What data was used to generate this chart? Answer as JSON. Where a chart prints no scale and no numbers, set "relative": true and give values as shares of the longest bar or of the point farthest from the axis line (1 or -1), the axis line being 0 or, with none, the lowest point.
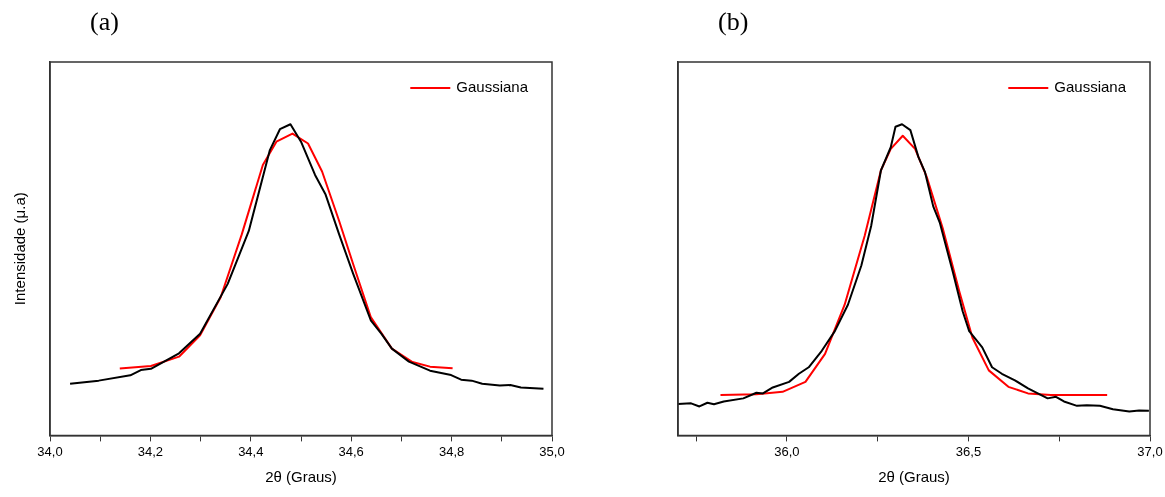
{
  "chart_data": [
    {
      "type": "line",
      "title": "(a)",
      "xlabel": "2θ (Graus)",
      "ylabel": "Intensidade (μ.a)",
      "relative": true,
      "legend": "top right",
      "marker": "none",
      "line_style": "solid",
      "tick_labels": "x",
      "xlim": [
        34.0,
        35.0
      ],
      "xticks": [
        {
          "value": 34.0,
          "label": "34,0"
        },
        {
          "value": 34.1,
          "label": null
        },
        {
          "value": 34.2,
          "label": "34,2"
        },
        {
          "value": 34.3,
          "label": null
        },
        {
          "value": 34.4,
          "label": "34,4"
        },
        {
          "value": 34.5,
          "label": null
        },
        {
          "value": 34.6,
          "label": "34,6"
        },
        {
          "value": 34.7,
          "label": null
        },
        {
          "value": 34.8,
          "label": "34,8"
        },
        {
          "value": 34.9,
          "label": null
        },
        {
          "value": 35.0,
          "label": "35,0"
        }
      ],
      "series": [
        {
          "color": "#000000",
          "x": [
            34.04,
            34.097,
            34.16,
            34.181,
            34.201,
            34.257,
            34.299,
            34.354,
            34.396,
            34.438,
            34.458,
            34.479,
            34.5,
            34.528,
            34.549,
            34.576,
            34.604,
            34.639,
            34.66,
            34.681,
            34.715,
            34.757,
            34.799,
            34.819,
            34.84,
            34.861,
            34.896,
            34.917,
            34.938,
            34.983
          ],
          "values": [
            0.166,
            0.176,
            0.193,
            0.21,
            0.214,
            0.264,
            0.327,
            0.487,
            0.657,
            0.917,
            0.984,
            1.0,
            0.944,
            0.837,
            0.774,
            0.646,
            0.519,
            0.37,
            0.327,
            0.279,
            0.237,
            0.208,
            0.194,
            0.179,
            0.176,
            0.166,
            0.16,
            0.162,
            0.154,
            0.15
          ]
        },
        {
          "name": "Gaussiana",
          "color": "#ff0000",
          "x": [
            34.139,
            34.201,
            34.257,
            34.299,
            34.34,
            34.382,
            34.424,
            34.451,
            34.483,
            34.514,
            34.542,
            34.576,
            34.604,
            34.639,
            34.681,
            34.722,
            34.757,
            34.802
          ],
          "values": [
            0.215,
            0.223,
            0.253,
            0.322,
            0.444,
            0.646,
            0.869,
            0.944,
            0.97,
            0.938,
            0.848,
            0.689,
            0.55,
            0.38,
            0.279,
            0.236,
            0.221,
            0.216
          ]
        }
      ]
    },
    {
      "type": "line",
      "title": "(b)",
      "xlabel": "2θ (Graus)",
      "relative": true,
      "legend": "top right",
      "marker": "none",
      "line_style": "solid",
      "tick_labels": "x",
      "xlim": [
        35.7,
        37.0
      ],
      "xticks": [
        {
          "value": 35.75,
          "label": null
        },
        {
          "value": 36.0,
          "label": "36,0"
        },
        {
          "value": 36.25,
          "label": null
        },
        {
          "value": 36.5,
          "label": "36,5"
        },
        {
          "value": 36.75,
          "label": null
        },
        {
          "value": 37.0,
          "label": "37,0"
        }
      ],
      "series": [
        {
          "color": "#000000",
          "x": [
            35.7,
            35.736,
            35.759,
            35.781,
            35.799,
            35.826,
            35.88,
            35.916,
            35.934,
            35.961,
            36.006,
            36.033,
            36.06,
            36.096,
            36.132,
            36.168,
            36.205,
            36.232,
            36.259,
            36.286,
            36.299,
            36.317,
            36.34,
            36.362,
            36.38,
            36.403,
            36.421,
            36.457,
            36.484,
            36.502,
            36.538,
            36.565,
            36.592,
            36.628,
            36.664,
            36.718,
            36.741,
            36.763,
            36.799,
            36.826,
            36.862,
            36.898,
            36.943,
            36.97,
            36.997
          ],
          "values": [
            0.101,
            0.103,
            0.093,
            0.105,
            0.1,
            0.109,
            0.119,
            0.137,
            0.135,
            0.154,
            0.172,
            0.198,
            0.219,
            0.272,
            0.335,
            0.42,
            0.546,
            0.673,
            0.852,
            0.926,
            0.992,
            1.0,
            0.981,
            0.895,
            0.847,
            0.736,
            0.684,
            0.525,
            0.399,
            0.335,
            0.283,
            0.219,
            0.198,
            0.177,
            0.151,
            0.119,
            0.124,
            0.109,
            0.095,
            0.097,
            0.095,
            0.084,
            0.077,
            0.08,
            0.079
          ]
        },
        {
          "name": "Gaussiana",
          "color": "#ff0000",
          "x": [
            35.817,
            35.916,
            35.988,
            36.051,
            36.105,
            36.159,
            36.214,
            36.259,
            36.286,
            36.319,
            36.353,
            36.385,
            36.43,
            36.475,
            36.511,
            36.556,
            36.61,
            36.664,
            36.727,
            36.882
          ],
          "values": [
            0.13,
            0.132,
            0.14,
            0.172,
            0.262,
            0.42,
            0.641,
            0.852,
            0.921,
            0.963,
            0.921,
            0.831,
            0.662,
            0.462,
            0.314,
            0.209,
            0.156,
            0.135,
            0.13,
            0.13
          ]
        }
      ]
    }
  ]
}
